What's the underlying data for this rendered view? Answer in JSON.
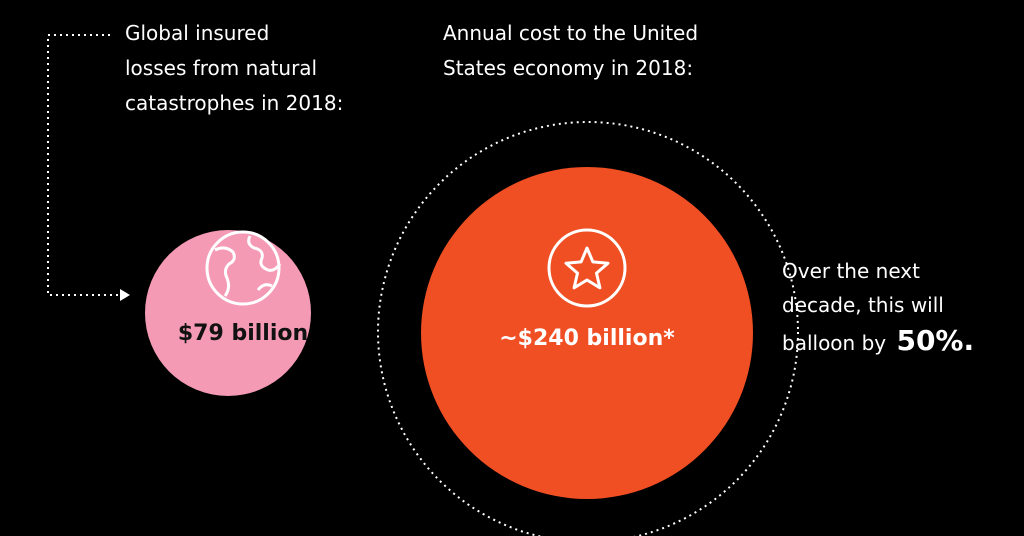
{
  "left": {
    "caption": [
      "Global insured",
      "losses from natural",
      "catastrophes in 2018:"
    ],
    "value": "$79 billion"
  },
  "right": {
    "caption": [
      "Annual cost to the United",
      "States economy in 2018:"
    ],
    "value": "~$240 billion*"
  },
  "note": {
    "lines": [
      "Over the next",
      "decade, this will"
    ],
    "prefix": "balloon by",
    "highlight": "50%."
  }
}
